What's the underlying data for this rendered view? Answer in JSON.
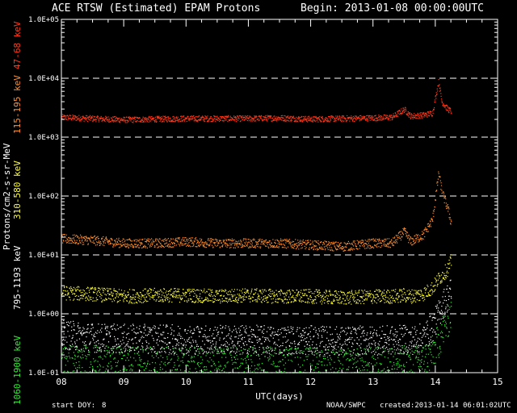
{
  "title": {
    "main": "ACE RTSW (Estimated) EPAM Protons",
    "begin": "Begin: 2013-01-08 00:00:00UTC"
  },
  "footer": {
    "start_doy_label": "start DOY:",
    "start_doy_value": "8",
    "source": "NOAA/SWPC",
    "created": "created:2013-01-14 06:01:02UTC"
  },
  "y_axis": {
    "unit_label": "Protons/cm2-s-sr-MeV",
    "channels": [
      {
        "label": "47-68 keV",
        "color": "#ff3a1a"
      },
      {
        "label": "115-195 keV",
        "color": "#ff8c2a"
      },
      {
        "label": "310-580 keV",
        "color": "#ffff33"
      },
      {
        "label": "795-1193 keV",
        "color": "#ffffff"
      },
      {
        "label": "1060-1900 keV",
        "color": "#33ee33"
      }
    ]
  },
  "chart_data": {
    "type": "scatter",
    "title": "ACE RTSW (Estimated) EPAM Protons",
    "xlabel": "UTC(days)",
    "ylabel": "Protons/cm2-s-sr-MeV",
    "xlim": [
      8,
      15
    ],
    "ylim": [
      0.1,
      100000
    ],
    "yscale": "log",
    "grid": "dashed horizontal lines at each decade",
    "x_ticks": [
      "08",
      "09",
      "10",
      "11",
      "12",
      "13",
      "14",
      "15"
    ],
    "y_ticks": [
      "1.0E-01",
      "1.0E+00",
      "1.0E+01",
      "1.0E+02",
      "1.0E+03",
      "1.0E+04",
      "1.0E+05"
    ],
    "series": [
      {
        "name": "47-68 keV",
        "color": "#ff3a1a",
        "x": [
          8.0,
          8.5,
          9.0,
          9.5,
          10.0,
          10.5,
          11.0,
          11.5,
          12.0,
          12.5,
          13.0,
          13.3,
          13.5,
          13.6,
          13.8,
          13.95,
          14.05,
          14.1,
          14.2,
          14.25
        ],
        "y": [
          2200,
          2100,
          2000,
          2050,
          2100,
          2100,
          2100,
          2150,
          2050,
          2100,
          2150,
          2200,
          3000,
          2300,
          2400,
          2600,
          9000,
          4000,
          3000,
          2800
        ]
      },
      {
        "name": "115-195 keV",
        "color": "#ff8c2a",
        "x": [
          8.0,
          8.5,
          9.0,
          9.5,
          10.0,
          10.5,
          11.0,
          11.5,
          12.0,
          12.5,
          13.0,
          13.3,
          13.5,
          13.6,
          13.8,
          13.95,
          14.05,
          14.1,
          14.2,
          14.25
        ],
        "y": [
          19,
          18,
          16,
          16,
          17,
          16,
          16,
          16,
          15,
          14,
          16,
          16,
          25,
          17,
          22,
          40,
          250,
          120,
          60,
          35
        ]
      },
      {
        "name": "310-580 keV",
        "color": "#ffff33",
        "x": [
          8.0,
          8.5,
          9.0,
          9.5,
          10.0,
          10.5,
          11.0,
          11.5,
          12.0,
          12.5,
          13.0,
          13.3,
          13.5,
          13.6,
          13.8,
          13.95,
          14.05,
          14.1,
          14.2,
          14.25
        ],
        "y": [
          2.3,
          2.2,
          2.0,
          2.1,
          2.1,
          2.0,
          2.1,
          2.0,
          2.0,
          1.9,
          2.0,
          2.0,
          2.1,
          2.0,
          2.2,
          2.8,
          4.0,
          4.5,
          6.0,
          8.0
        ]
      },
      {
        "name": "795-1193 keV",
        "color": "#ffffff",
        "x": [
          8.0,
          8.5,
          9.0,
          9.5,
          10.0,
          10.5,
          11.0,
          11.5,
          12.0,
          12.5,
          13.0,
          13.3,
          13.5,
          13.6,
          13.8,
          13.95,
          14.05,
          14.1,
          14.2,
          14.25
        ],
        "y": [
          0.45,
          0.4,
          0.38,
          0.38,
          0.37,
          0.37,
          0.37,
          0.36,
          0.36,
          0.35,
          0.36,
          0.36,
          0.37,
          0.36,
          0.4,
          0.6,
          1.0,
          1.4,
          2.0,
          2.5
        ]
      },
      {
        "name": "1060-1900 keV",
        "color": "#33ee33",
        "x": [
          8.0,
          8.5,
          9.0,
          9.5,
          10.0,
          10.5,
          11.0,
          11.5,
          12.0,
          12.5,
          13.0,
          13.3,
          13.5,
          13.6,
          13.8,
          13.95,
          14.05,
          14.1,
          14.2,
          14.25
        ],
        "y": [
          0.16,
          0.15,
          0.14,
          0.14,
          0.14,
          0.14,
          0.14,
          0.14,
          0.14,
          0.13,
          0.14,
          0.14,
          0.15,
          0.14,
          0.16,
          0.22,
          0.35,
          0.5,
          0.8,
          1.0
        ]
      }
    ]
  }
}
